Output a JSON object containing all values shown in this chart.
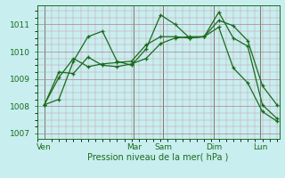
{
  "background_color": "#c8eef0",
  "line_color": "#1a6b1a",
  "xlabel": "Pression niveau de la mer( hPa )",
  "ylim": [
    1006.8,
    1011.7
  ],
  "yticks": [
    1007,
    1008,
    1009,
    1010,
    1011
  ],
  "xlim": [
    0,
    100
  ],
  "day_labels": [
    "Ven",
    "Mar",
    "Sam",
    "Dim",
    "Lun"
  ],
  "day_positions": [
    3,
    40,
    52,
    73,
    92
  ],
  "vline_positions": [
    3,
    40,
    52,
    73,
    92
  ],
  "series": [
    {
      "x": [
        3,
        9,
        15,
        21,
        27,
        33,
        39,
        45,
        51,
        57,
        63,
        69,
        75,
        81,
        87,
        93,
        99
      ],
      "y": [
        1008.05,
        1008.25,
        1009.65,
        1010.55,
        1010.75,
        1009.65,
        1009.5,
        1010.1,
        1011.35,
        1011.0,
        1010.5,
        1010.55,
        1011.45,
        1010.5,
        1010.2,
        1008.05,
        1007.55
      ]
    },
    {
      "x": [
        3,
        9,
        15,
        21,
        27,
        33,
        39,
        45,
        51,
        57,
        63,
        69,
        75,
        81,
        87,
        93,
        99
      ],
      "y": [
        1008.05,
        1009.05,
        1009.75,
        1009.45,
        1009.55,
        1009.6,
        1009.65,
        1010.25,
        1010.55,
        1010.55,
        1010.5,
        1010.55,
        1011.15,
        1010.95,
        1010.4,
        1008.75,
        1008.05
      ]
    },
    {
      "x": [
        3,
        9,
        15,
        21,
        27,
        33,
        39,
        45,
        51,
        57,
        63,
        69,
        75,
        81,
        87,
        93,
        99
      ],
      "y": [
        1008.05,
        1009.25,
        1009.2,
        1009.8,
        1009.5,
        1009.45,
        1009.55,
        1009.75,
        1010.3,
        1010.5,
        1010.55,
        1010.55,
        1010.9,
        1009.4,
        1008.85,
        1007.8,
        1007.45
      ]
    }
  ]
}
